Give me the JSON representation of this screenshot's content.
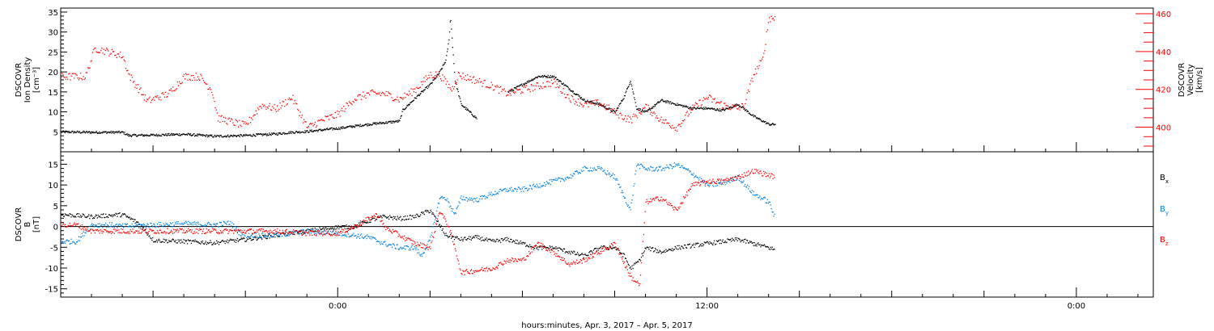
{
  "chart_data": [
    {
      "type": "scatter",
      "panel": "top",
      "ylabel_left": [
        "DSCOVR",
        "Ion Density",
        "[cm⁻³]"
      ],
      "ylabel_right": [
        "DSCOVR",
        "Velocity",
        "[km/s]"
      ],
      "ylim": [
        0,
        36
      ],
      "y2lim": [
        387,
        463
      ],
      "yticks": [
        5,
        10,
        15,
        20,
        25,
        30,
        35
      ],
      "y2ticks": [
        400,
        420,
        440,
        460
      ],
      "ytick_labels": [
        "5",
        "10",
        "15",
        "20",
        "25",
        "30",
        "35"
      ],
      "y2tick_labels": [
        "400",
        "420",
        "440",
        "460"
      ],
      "grid": false,
      "series": [
        {
          "color": "#000000",
          "axis": "left",
          "x": [
            -9.0,
            -8.0,
            -7.0,
            -6.8,
            -6.0,
            -5.0,
            -4.0,
            -3.0,
            -2.0,
            -1.5,
            -1.0,
            0,
            1,
            2,
            2.1,
            2.5,
            3,
            3.3,
            3.5,
            3.6,
            3.65,
            3.8,
            4,
            4.5,
            5,
            5.5,
            6,
            6.5,
            7,
            7.5,
            8,
            8.5,
            9,
            9.3,
            9.5,
            9.7,
            10,
            10.5,
            11,
            11.5,
            12,
            12.5,
            13,
            13.5,
            14,
            14.2
          ],
          "y": [
            5.1,
            5.0,
            5.0,
            4.2,
            4.3,
            4.5,
            4.0,
            4.2,
            4.6,
            5.0,
            5.2,
            6.0,
            7.0,
            7.8,
            10.5,
            13.5,
            17,
            20,
            23,
            28,
            34,
            18,
            12,
            8.5,
            null,
            15,
            17,
            19,
            19,
            16,
            13,
            12,
            10,
            14,
            18,
            11,
            10,
            13,
            12,
            11,
            11,
            10.5,
            12,
            9,
            7,
            7
          ]
        },
        {
          "color": "#ff0000",
          "axis": "right",
          "x": [
            -9.0,
            -8.2,
            -7.9,
            -7.0,
            -6.8,
            -6.2,
            -5.5,
            -5.0,
            -4.5,
            -4.1,
            -3.9,
            -3.0,
            -2.5,
            -2.0,
            -1.5,
            -1.0,
            -0.5,
            0,
            0.5,
            1,
            1.5,
            2,
            2.5,
            3,
            3.3,
            3.5,
            3.7,
            3.9,
            4.3,
            5,
            5.5,
            6,
            6.5,
            7,
            7.5,
            8,
            8.5,
            9,
            9.5,
            10,
            10.5,
            11,
            11.5,
            12,
            12.5,
            13,
            13.2,
            13.5,
            13.8,
            14,
            14.2
          ],
          "y": [
            427,
            427,
            442,
            438,
            428,
            414,
            418,
            427,
            427,
            420,
            405,
            401,
            412,
            410,
            416,
            400,
            404,
            407,
            415,
            418,
            418,
            415,
            420,
            428,
            428,
            424,
            420,
            428,
            426,
            422,
            418,
            420,
            422,
            424,
            416,
            412,
            413,
            408,
            404,
            411,
            404,
            400,
            410,
            416,
            412,
            410,
            412,
            428,
            436,
            458,
            458
          ]
        }
      ]
    },
    {
      "type": "scatter",
      "panel": "bottom",
      "ylabel_left": [
        "DSCOVR",
        "B",
        "[nT]"
      ],
      "ylim": [
        -17,
        18
      ],
      "yticks": [
        -15,
        -10,
        -5,
        0,
        5,
        10,
        15
      ],
      "ytick_labels": [
        "-15",
        "-10",
        "-5",
        "0",
        "5",
        "10",
        "15"
      ],
      "zero_line": true,
      "grid": false,
      "legend_placement": "right",
      "series": [
        {
          "name": "Bₓ",
          "color": "#000000",
          "x": [
            -9.0,
            -8.0,
            -7.0,
            -6.5,
            -6.0,
            -5.0,
            -4.0,
            -3.0,
            -2.0,
            -1.0,
            0,
            0.5,
            1,
            1.5,
            2,
            2.5,
            3,
            3.5,
            4,
            4.5,
            5,
            5.5,
            6,
            6.5,
            7,
            7.5,
            8,
            8.5,
            9,
            9.3,
            9.5,
            9.8,
            10,
            10.5,
            11,
            11.5,
            12,
            12.5,
            13,
            13.5,
            14,
            14.2
          ],
          "y": [
            3,
            2.5,
            3.0,
            1.0,
            -3.2,
            -3.5,
            -3.8,
            -3.0,
            -2.0,
            -1.0,
            0,
            0,
            1.5,
            2.5,
            2.0,
            2.5,
            4.0,
            -2.0,
            -3.0,
            -2.5,
            -3.5,
            -3.0,
            -4.0,
            -5.0,
            -5.0,
            -6.0,
            -7.0,
            -5.0,
            -5.0,
            -7.0,
            -10.0,
            -8.0,
            -5.0,
            -6.0,
            -5.0,
            -4.5,
            -4.0,
            -3.5,
            -3.0,
            -4.0,
            -5.0,
            -5.5
          ]
        },
        {
          "name": "Bᵧ",
          "color": "#0080e0",
          "x": [
            -9.0,
            -8.5,
            -8.0,
            -7.5,
            -7.0,
            -6.0,
            -5.0,
            -4.0,
            -3.5,
            -3.2,
            -3.0,
            -2.0,
            -1.0,
            0,
            0.5,
            1,
            1.5,
            2,
            2.5,
            2.7,
            3,
            3.3,
            3.5,
            3.8,
            4,
            4.5,
            5,
            5.5,
            6,
            6.5,
            7,
            7.5,
            8,
            8.5,
            9,
            9.5,
            9.7,
            10,
            10.5,
            11,
            11.5,
            12,
            12.5,
            13,
            13.5,
            14,
            14.2
          ],
          "y": [
            -3.5,
            -3.5,
            0.5,
            0.5,
            0.2,
            0.5,
            0.8,
            0.5,
            1.0,
            -1.5,
            -2.0,
            -2.0,
            -1.0,
            -1.5,
            -2.0,
            -2.5,
            -4.0,
            -5.0,
            -5.0,
            -7.0,
            -3.0,
            7.0,
            7.0,
            3.0,
            7.0,
            6.5,
            8.0,
            9.0,
            9.0,
            10.0,
            11.0,
            12.0,
            14.0,
            14.0,
            12.0,
            4.0,
            15.0,
            14.0,
            14.0,
            15.0,
            13.0,
            10.0,
            10.5,
            12.0,
            8.0,
            6.0,
            2.0
          ]
        },
        {
          "name": "B_z",
          "color": "#ff0000",
          "x": [
            -9.0,
            -8.5,
            -8.0,
            -7.0,
            -6.0,
            -5.0,
            -4.0,
            -3.0,
            -2.0,
            -1.0,
            0,
            0.5,
            1,
            1.3,
            1.5,
            2,
            2.5,
            3,
            3.3,
            3.6,
            3.9,
            4,
            4.5,
            5,
            5.5,
            6,
            6.5,
            7,
            7.5,
            8,
            8.5,
            9,
            9.5,
            9.8,
            10,
            10.5,
            11,
            11.5,
            12,
            12.5,
            13,
            13.5,
            14,
            14.2
          ],
          "y": [
            0.5,
            0.5,
            -1.0,
            -1.0,
            -1.0,
            -1.0,
            -1.0,
            -1.0,
            -1.0,
            -1.5,
            -1.5,
            0,
            2.0,
            3.0,
            0,
            -2.0,
            -4.0,
            -5.0,
            4.0,
            0,
            -8.0,
            -11.0,
            -10.5,
            -10.0,
            -8.0,
            -8.0,
            -4.0,
            -6.0,
            -9.0,
            -8.0,
            -6.0,
            -4.0,
            -12.0,
            -14.0,
            6.0,
            7.0,
            4.0,
            10.0,
            11.0,
            11.0,
            12.0,
            13.5,
            12.5,
            12.0
          ]
        }
      ]
    }
  ],
  "x_axis": {
    "xlim": [
      -9.0,
      26.5
    ],
    "tick_hours": [
      0,
      12,
      24
    ],
    "tick_labels": [
      "0:00",
      "12:00",
      "0:00"
    ],
    "xlabel": "hours:minutes, Apr.  3, 2017 – Apr.  5, 2017"
  },
  "legend": {
    "items": [
      {
        "letter": "B",
        "sub": "x",
        "color": "#000000"
      },
      {
        "letter": "B",
        "sub": "y",
        "color": "#0080e0"
      },
      {
        "letter": "B",
        "sub": "z",
        "color": "#ff0000"
      }
    ]
  }
}
